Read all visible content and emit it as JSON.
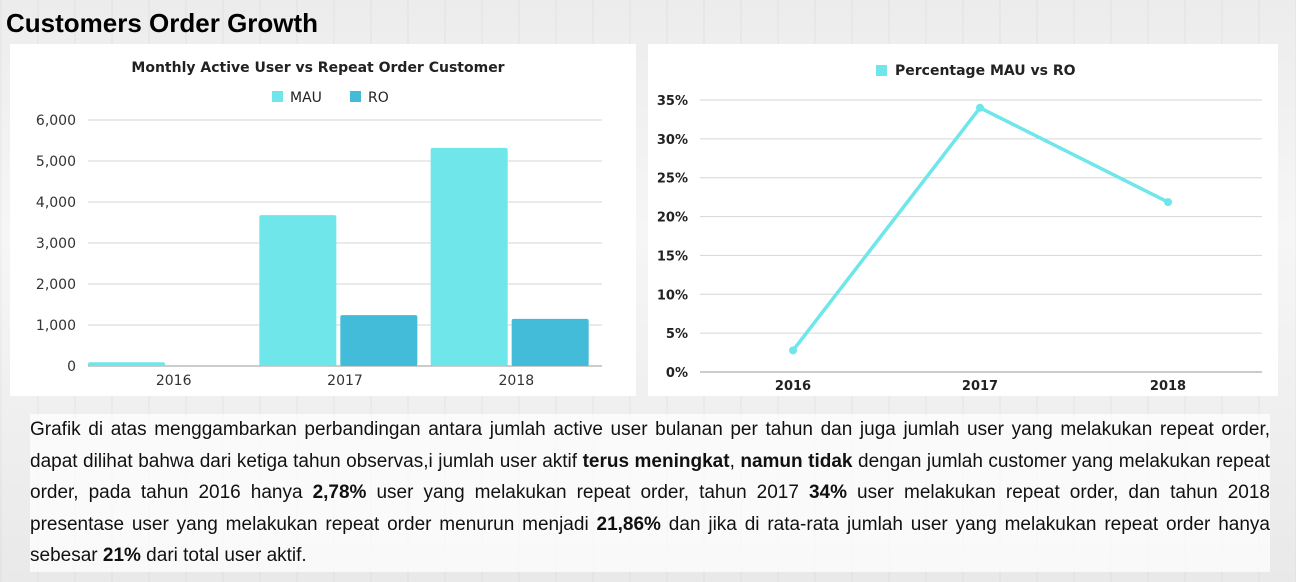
{
  "page": {
    "title": "Customers Order Growth"
  },
  "chart_data": [
    {
      "type": "bar",
      "title": "Monthly Active User vs Repeat Order Customer",
      "categories": [
        "2016",
        "2017",
        "2018"
      ],
      "series": [
        {
          "name": "MAU",
          "values": [
            90,
            3680,
            5320
          ],
          "color": "#6ee6ea"
        },
        {
          "name": "RO",
          "values": [
            3,
            1240,
            1150
          ],
          "color": "#42bcd8"
        }
      ],
      "ylim": [
        0,
        6000
      ],
      "yticks": [
        0,
        1000,
        2000,
        3000,
        4000,
        5000,
        6000
      ],
      "ytick_labels": [
        "0",
        "1,000",
        "2,000",
        "3,000",
        "4,000",
        "5,000",
        "6,000"
      ],
      "grid": true,
      "legend": "top-center"
    },
    {
      "type": "line",
      "categories": [
        "2016",
        "2017",
        "2018"
      ],
      "series": [
        {
          "name": "Percentage MAU vs RO",
          "values": [
            2.78,
            34,
            21.86
          ],
          "color": "#6ee6ea"
        }
      ],
      "ylim": [
        0,
        35
      ],
      "yticks": [
        0,
        5,
        10,
        15,
        20,
        25,
        30,
        35
      ],
      "ytick_labels": [
        "0%",
        "5%",
        "10%",
        "15%",
        "20%",
        "25%",
        "30%",
        "35%"
      ],
      "grid": true,
      "legend": "top-center"
    }
  ],
  "description": {
    "segments": [
      {
        "text": "Grafik di atas menggambarkan perbandingan antara jumlah active user bulanan per tahun dan juga jumlah user yang melakukan repeat order, dapat dilihat bahwa dari ketiga tahun observas,i jumlah user aktif ",
        "bold": false
      },
      {
        "text": "terus meningkat",
        "bold": true
      },
      {
        "text": ", ",
        "bold": false
      },
      {
        "text": "namun tidak",
        "bold": true
      },
      {
        "text": " dengan jumlah customer yang melakukan repeat order, pada tahun 2016 hanya ",
        "bold": false
      },
      {
        "text": "2,78%",
        "bold": true
      },
      {
        "text": " user yang melakukan repeat order, tahun 2017 ",
        "bold": false
      },
      {
        "text": "34%",
        "bold": true
      },
      {
        "text": " user melakukan repeat order, dan tahun 2018 presentase user yang melakukan repeat order menurun menjadi ",
        "bold": false
      },
      {
        "text": "21,86%",
        "bold": true
      },
      {
        "text": " dan jika di rata-rata jumlah user yang melakukan repeat order hanya sebesar ",
        "bold": false
      },
      {
        "text": "21%",
        "bold": true
      },
      {
        "text": " dari total user aktif.",
        "bold": false
      }
    ]
  }
}
